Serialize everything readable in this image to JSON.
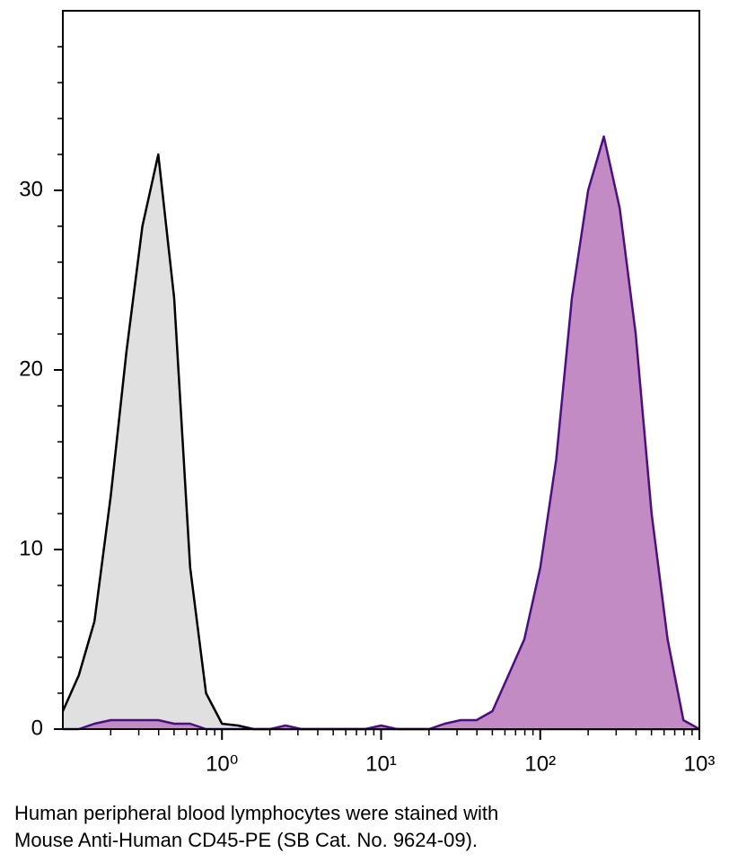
{
  "chart_data": {
    "type": "histogram-overlay",
    "xscale": "log",
    "x": [
      0.1,
      0.126,
      0.158,
      0.2,
      0.251,
      0.316,
      0.398,
      0.501,
      0.631,
      0.794,
      1,
      1.26,
      1.58,
      2,
      2.51,
      3.16,
      3.98,
      5.01,
      6.31,
      7.94,
      10,
      12.6,
      15.8,
      20,
      25.1,
      31.6,
      39.8,
      50.1,
      63.1,
      79.4,
      100,
      126,
      158,
      200,
      251,
      316,
      398,
      501,
      631,
      794,
      1000
    ],
    "series": [
      {
        "color": "#000000",
        "fill": "#e0e0e0",
        "values": [
          1,
          3,
          6,
          13,
          21,
          28,
          32,
          24,
          9,
          2,
          0.3,
          0.2,
          0,
          0,
          0,
          0,
          0,
          0,
          0,
          0,
          0,
          0,
          0,
          0,
          0,
          0,
          0,
          0,
          0,
          0,
          0,
          0,
          0,
          0,
          0,
          0,
          0,
          0,
          0,
          0,
          0
        ]
      },
      {
        "color": "#4b0f7f",
        "fill": "#c28bc4",
        "values": [
          0,
          0,
          0.3,
          0.5,
          0.5,
          0.5,
          0.5,
          0.3,
          0.3,
          0,
          0,
          0,
          0,
          0,
          0.2,
          0,
          0,
          0,
          0,
          0,
          0.2,
          0,
          0,
          0,
          0.3,
          0.5,
          0.5,
          1,
          3,
          5,
          9,
          15,
          24,
          30,
          33,
          29,
          22,
          12,
          5,
          0.5,
          0
        ]
      }
    ],
    "xlim": [
      0.1,
      1000
    ],
    "xticks": [
      {
        "value": 1,
        "label": "10⁰"
      },
      {
        "value": 10,
        "label": "10¹"
      },
      {
        "value": 100,
        "label": "10²"
      },
      {
        "value": 1000,
        "label": "10³"
      }
    ],
    "xminorticks": [
      0.2,
      0.3,
      0.4,
      0.5,
      0.6,
      0.7,
      0.8,
      0.9,
      2,
      3,
      4,
      5,
      6,
      7,
      8,
      9,
      20,
      30,
      40,
      50,
      60,
      70,
      80,
      90,
      200,
      300,
      400,
      500,
      600,
      700,
      800,
      900
    ],
    "ylim": [
      0,
      40
    ],
    "yticks": [
      0,
      10,
      20,
      30
    ],
    "yminorticks": [
      2,
      4,
      6,
      8,
      12,
      14,
      16,
      18,
      22,
      24,
      26,
      28,
      32,
      34,
      36,
      38
    ],
    "caption": [
      "Human peripheral blood lymphocytes were stained with",
      "Mouse Anti-Human CD45-PE (SB Cat. No. 9624-09)."
    ]
  }
}
